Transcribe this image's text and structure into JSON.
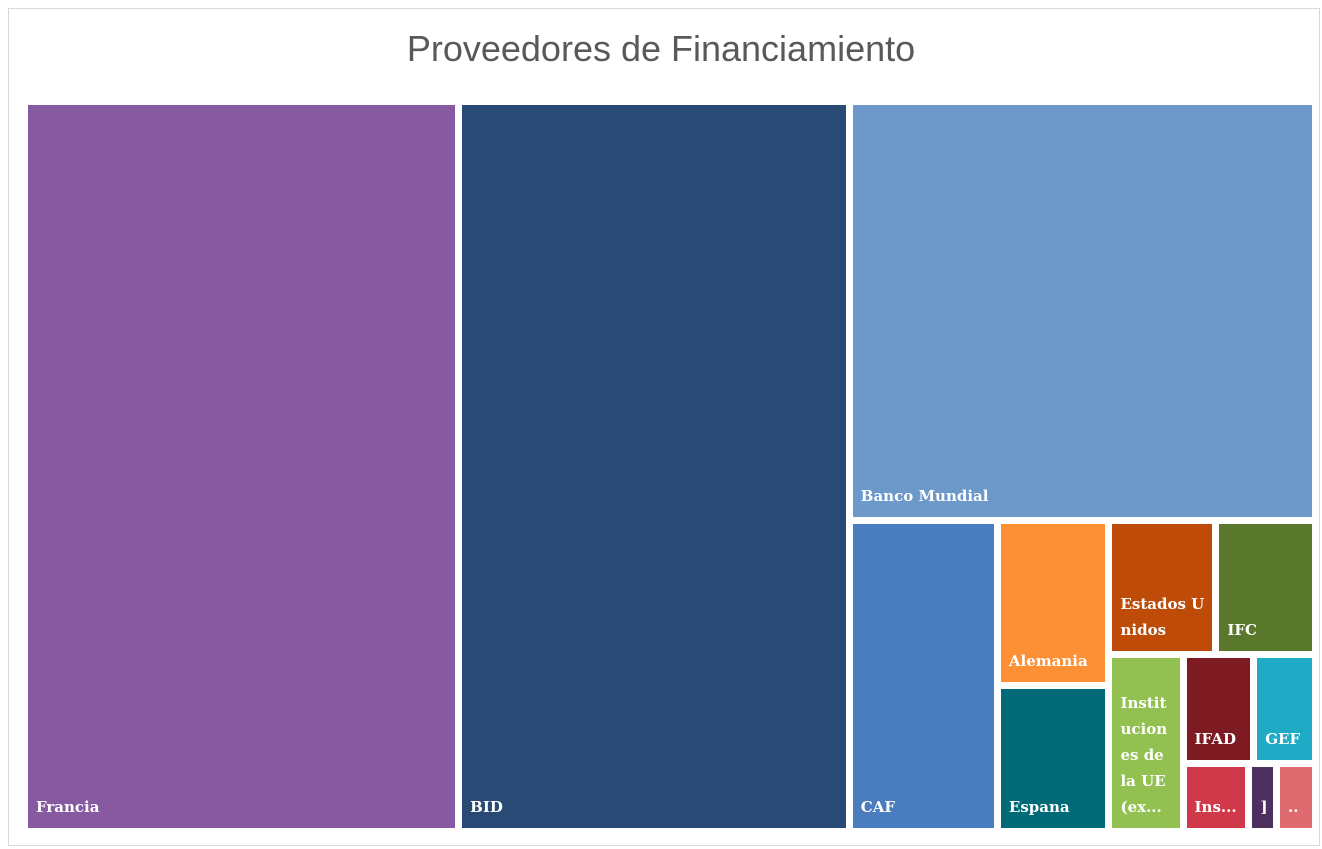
{
  "chart_data": {
    "type": "treemap",
    "title": "Proveedores de Financiamiento",
    "categories": [
      "Francia",
      "BID",
      "Banco Mundial",
      "CAF",
      "Alemania",
      "Espana",
      "Estados Unidos",
      "IFC",
      "Instituciones de la UE (ex...",
      "IFAD",
      "GEF",
      "Ins...",
      "]",
      ".."
    ],
    "values": [
      304,
      273,
      188,
      44,
      17.4,
      15.2,
      13.8,
      12.8,
      12.4,
      7.8,
      6.7,
      4.6,
      1.6,
      2.5
    ],
    "colors": [
      "#8759a0",
      "#284a75",
      "#6d98ca",
      "#4a7dbf",
      "#fd8f34",
      "#006b77",
      "#bf4b08",
      "#5a782b",
      "#92c152",
      "#7e1b22",
      "#1fabc6",
      "#d0394a",
      "#4e305f",
      "#df6a70"
    ]
  }
}
